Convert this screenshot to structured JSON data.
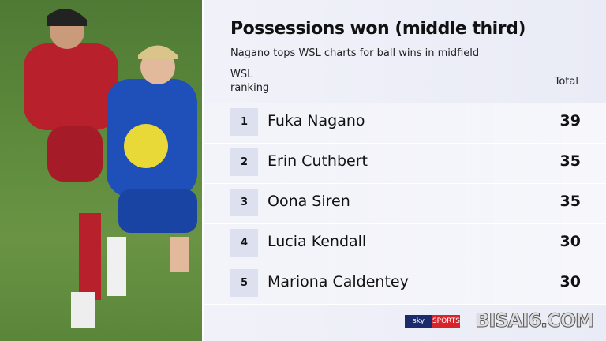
{
  "title": "Possessions won (middle third)",
  "subtitle": "Nagano tops WSL charts for ball wins in midfield",
  "headers": {
    "rank": "WSL ranking",
    "total": "Total"
  },
  "rows": [
    {
      "rank": "1",
      "name": "Fuka Nagano",
      "total": "39"
    },
    {
      "rank": "2",
      "name": "Erin Cuthbert",
      "total": "35"
    },
    {
      "rank": "3",
      "name": "Oona Siren",
      "total": "35"
    },
    {
      "rank": "4",
      "name": "Lucia Kendall",
      "total": "30"
    },
    {
      "rank": "5",
      "name": "Mariona Caldentey",
      "total": "30"
    }
  ],
  "logo": {
    "sky": "sky",
    "sports": "SPORTS"
  },
  "watermark": "BISAI6.COM",
  "colors": {
    "liverpool_red": "#b8202c",
    "chelsea_blue": "#1f4fb8",
    "pitch": "#5d8a3c"
  }
}
